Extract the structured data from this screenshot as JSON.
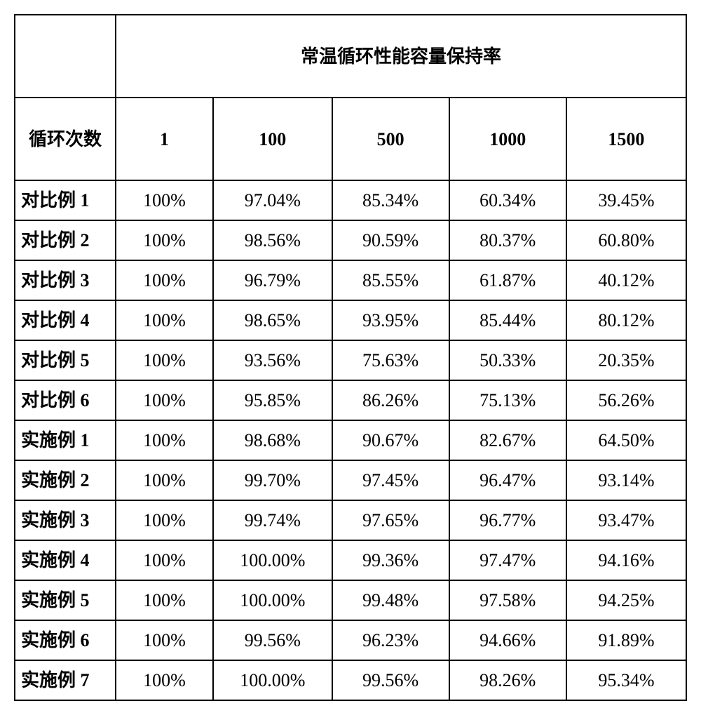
{
  "table": {
    "title": "常温循环性能容量保持率",
    "cycle_label": "循环次数",
    "columns": [
      "1",
      "100",
      "500",
      "1000",
      "1500"
    ],
    "rows": [
      {
        "label": "对比例 1",
        "values": [
          "100%",
          "97.04%",
          "85.34%",
          "60.34%",
          "39.45%"
        ]
      },
      {
        "label": "对比例 2",
        "values": [
          "100%",
          "98.56%",
          "90.59%",
          "80.37%",
          "60.80%"
        ]
      },
      {
        "label": "对比例 3",
        "values": [
          "100%",
          "96.79%",
          "85.55%",
          "61.87%",
          "40.12%"
        ]
      },
      {
        "label": "对比例 4",
        "values": [
          "100%",
          "98.65%",
          "93.95%",
          "85.44%",
          "80.12%"
        ]
      },
      {
        "label": "对比例 5",
        "values": [
          "100%",
          "93.56%",
          "75.63%",
          "50.33%",
          "20.35%"
        ]
      },
      {
        "label": "对比例 6",
        "values": [
          "100%",
          "95.85%",
          "86.26%",
          "75.13%",
          "56.26%"
        ]
      },
      {
        "label": "实施例 1",
        "values": [
          "100%",
          "98.68%",
          "90.67%",
          "82.67%",
          "64.50%"
        ]
      },
      {
        "label": "实施例 2",
        "values": [
          "100%",
          "99.70%",
          "97.45%",
          "96.47%",
          "93.14%"
        ]
      },
      {
        "label": "实施例 3",
        "values": [
          "100%",
          "99.74%",
          "97.65%",
          "96.77%",
          "93.47%"
        ]
      },
      {
        "label": "实施例 4",
        "values": [
          "100%",
          "100.00%",
          "99.36%",
          "97.47%",
          "94.16%"
        ]
      },
      {
        "label": "实施例 5",
        "values": [
          "100%",
          "100.00%",
          "99.48%",
          "97.58%",
          "94.25%"
        ]
      },
      {
        "label": "实施例 6",
        "values": [
          "100%",
          "99.56%",
          "96.23%",
          "94.66%",
          "91.89%"
        ]
      },
      {
        "label": "实施例 7",
        "values": [
          "100%",
          "100.00%",
          "99.56%",
          "98.26%",
          "95.34%"
        ]
      }
    ],
    "border_color": "#000000",
    "background_color": "#ffffff",
    "font_size_header": 26,
    "font_size_cell": 26
  }
}
